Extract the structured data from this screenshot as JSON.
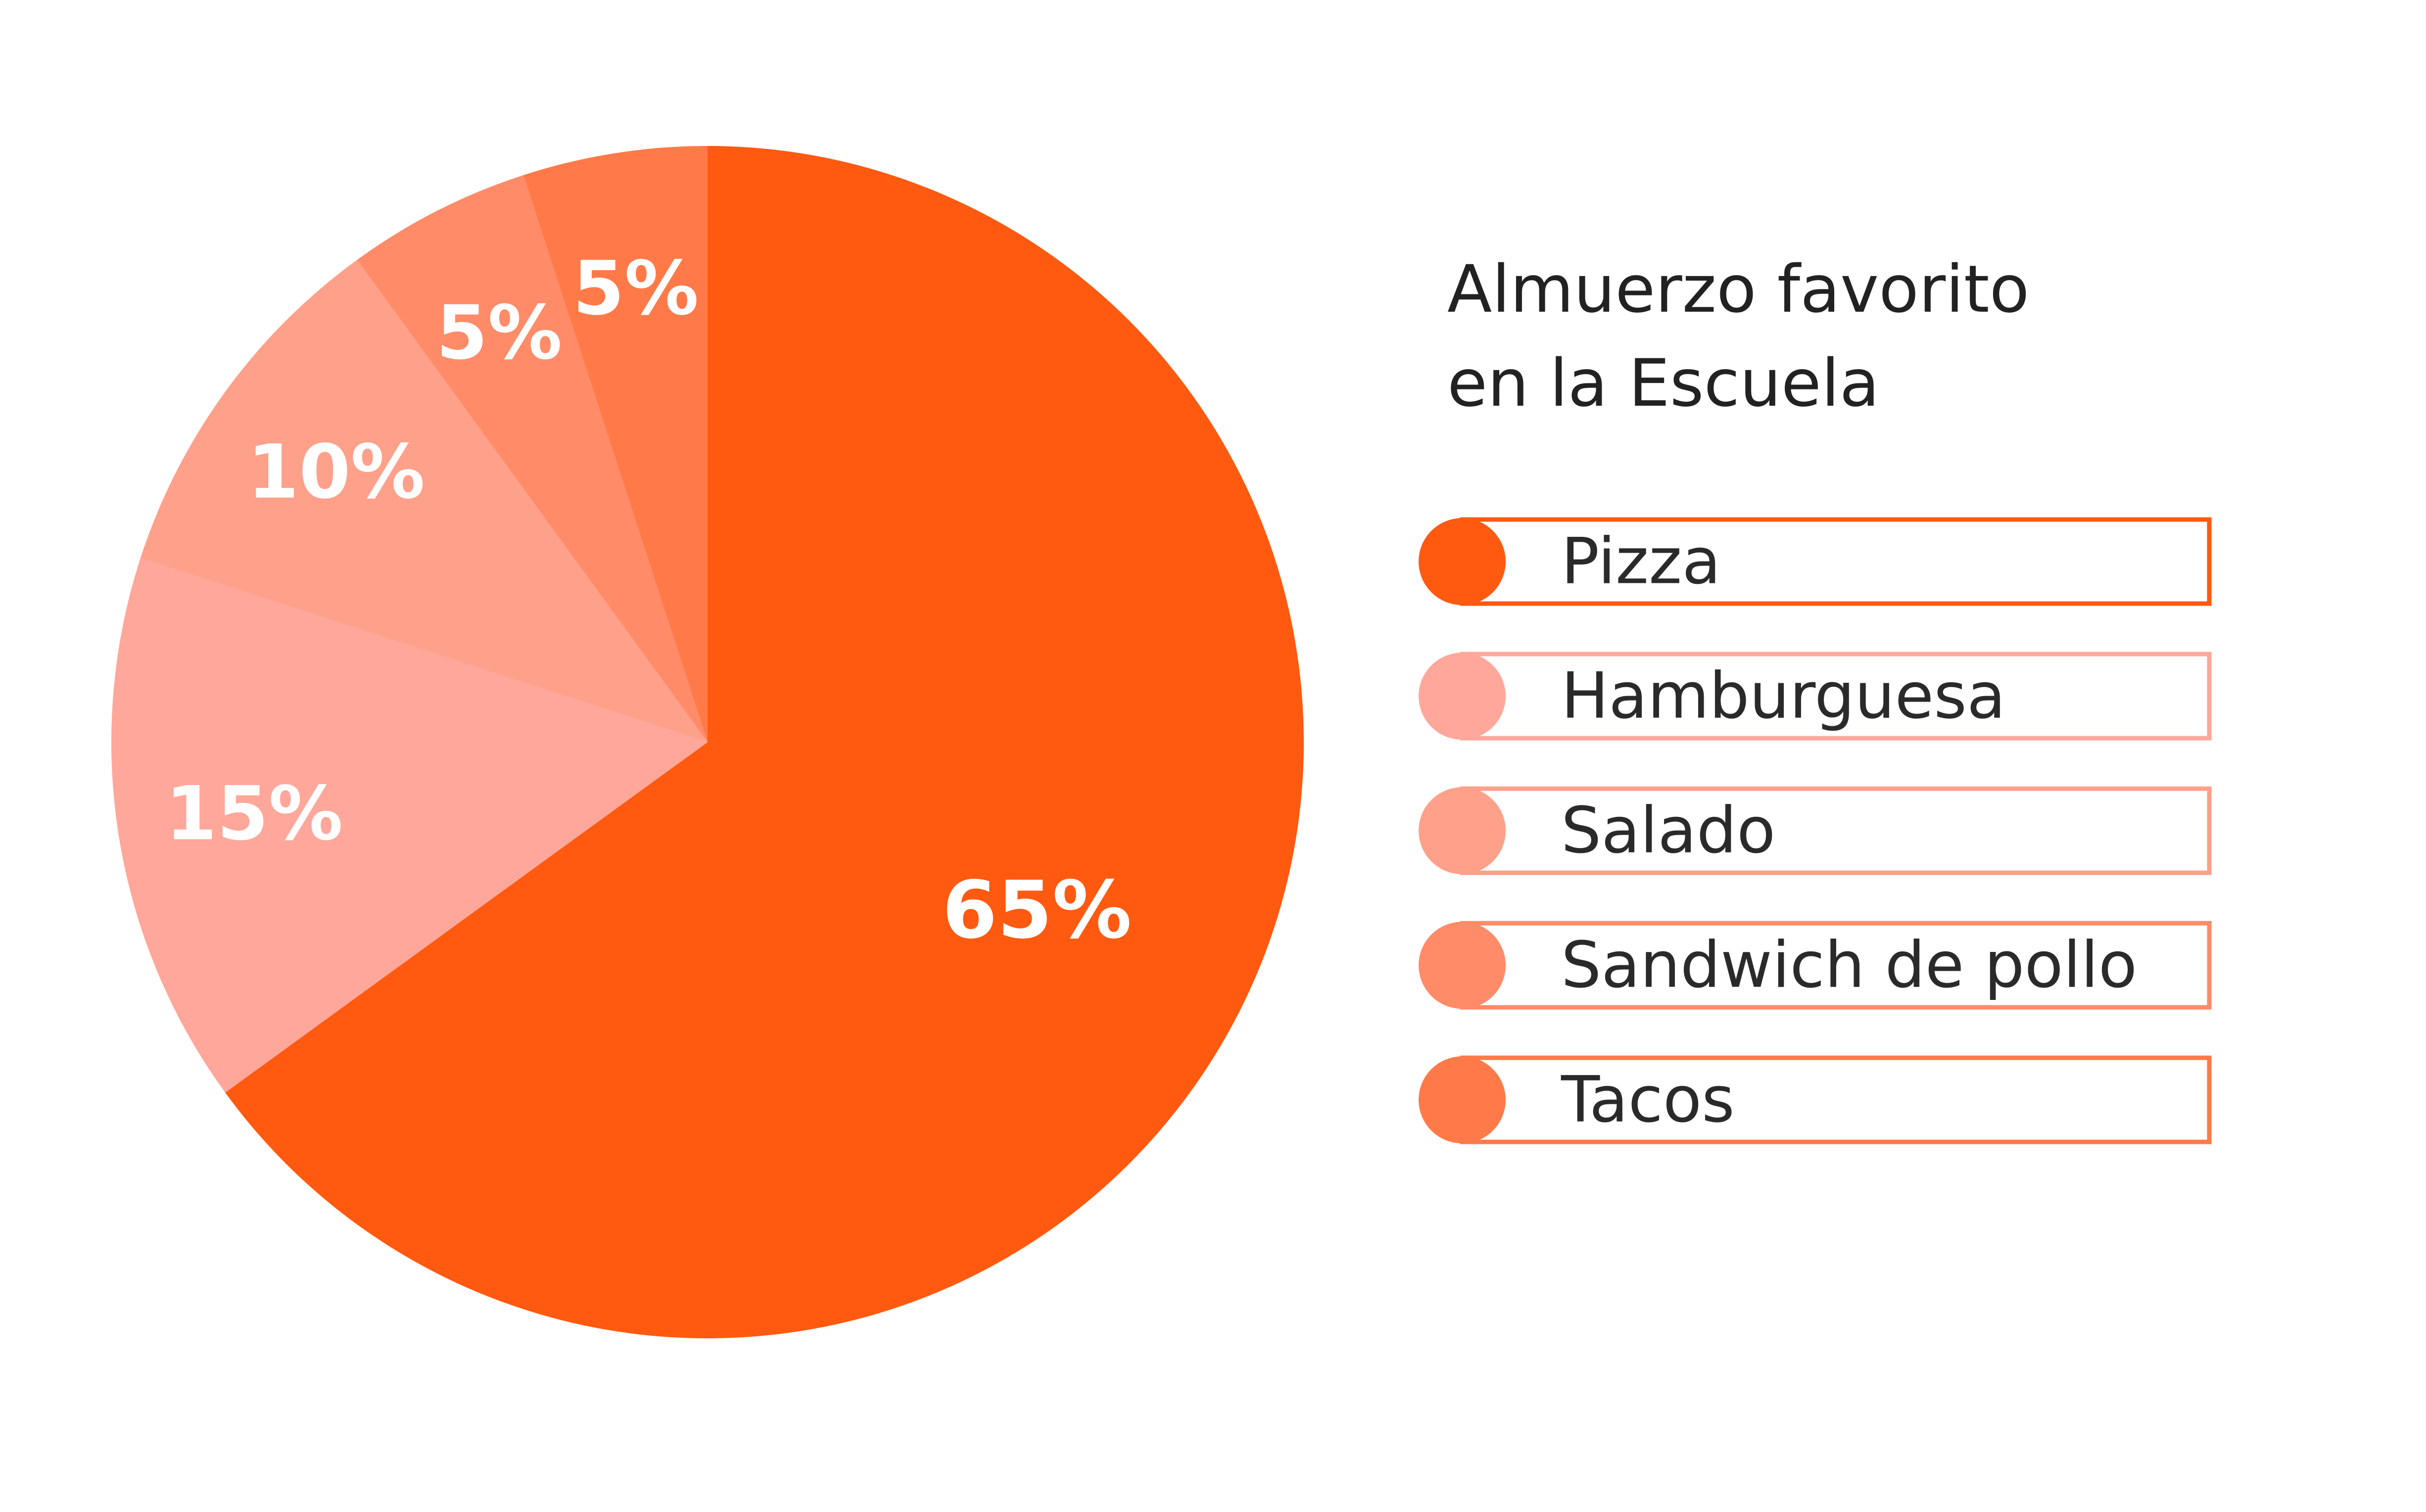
{
  "chart_data": {
    "type": "pie",
    "title": "Almuerzo favorito en la Escuela",
    "title_lines": [
      "Almuerzo favorito",
      "en la Escuela"
    ],
    "slices": [
      {
        "name": "Pizza",
        "value": 65,
        "label": "65%",
        "color": "#ff5a10"
      },
      {
        "name": "Hamburguesa",
        "value": 15,
        "label": "15%",
        "color": "#ffa79a"
      },
      {
        "name": "Salado",
        "value": 10,
        "label": "10%",
        "color": "#ffa08a"
      },
      {
        "name": "Sandwich de pollo",
        "value": 5,
        "label": "5%",
        "color": "#ff8b68"
      },
      {
        "name": "Tacos",
        "value": 5,
        "label": "5%",
        "color": "#ff7a48"
      }
    ],
    "legend_placement": "right"
  }
}
